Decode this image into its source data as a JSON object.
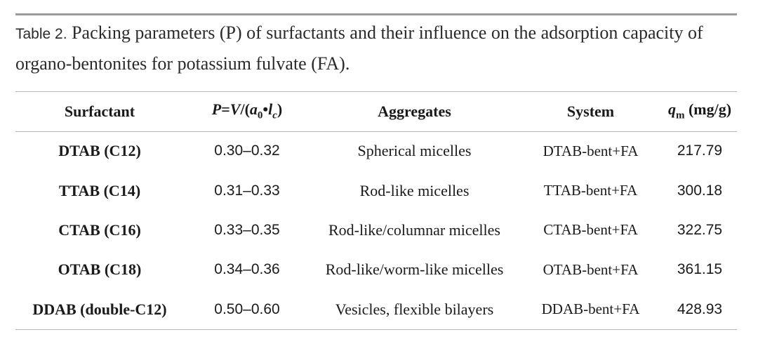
{
  "caption": {
    "label": "Table 2.",
    "text": "Packing parameters (P) of surfactants and their influence on the adsorption capacity of organo-bentonites for potassium fulvate (FA)."
  },
  "table": {
    "headers": {
      "surfactant": "Surfactant",
      "packing": "P=V/(a0•lc)",
      "aggregates": "Aggregates",
      "system": "System",
      "qm": "qm (mg/g)"
    },
    "rows": [
      {
        "surfactant": "DTAB (C12)",
        "packing": "0.30–0.32",
        "aggregates": "Spherical micelles",
        "system": "DTAB-bent+FA",
        "qm": "217.79"
      },
      {
        "surfactant": "TTAB (C14)",
        "packing": "0.31–0.33",
        "aggregates": "Rod-like micelles",
        "system": "TTAB-bent+FA",
        "qm": "300.18"
      },
      {
        "surfactant": "CTAB (C16)",
        "packing": "0.33–0.35",
        "aggregates": "Rod-like/columnar micelles",
        "system": "CTAB-bent+FA",
        "qm": "322.75"
      },
      {
        "surfactant": "OTAB (C18)",
        "packing": "0.34–0.36",
        "aggregates": "Rod-like/worm-like micelles",
        "system": "OTAB-bent+FA",
        "qm": "361.15"
      },
      {
        "surfactant": "DDAB (double-C12)",
        "packing": "0.50–0.60",
        "aggregates": "Vesicles, flexible bilayers",
        "system": "DDAB-bent+FA",
        "qm": "428.93"
      }
    ]
  }
}
